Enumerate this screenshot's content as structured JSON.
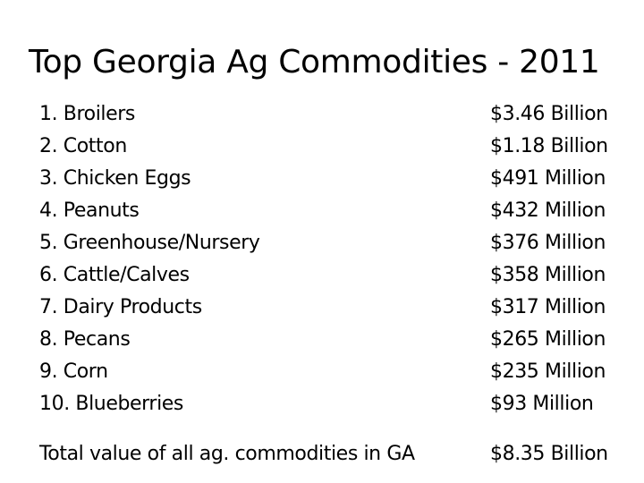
{
  "title": "Top Georgia Ag Commodities - 2011",
  "commodities": [
    {
      "name": "1. Broilers",
      "value": "$3.46 Billion"
    },
    {
      "name": "2. Cotton",
      "value": "$1.18 Billion"
    },
    {
      "name": "3. Chicken Eggs",
      "value": "$491 Million"
    },
    {
      "name": "4. Peanuts",
      "value": "$432 Million"
    },
    {
      "name": "5. Greenhouse/Nursery",
      "value": "$376 Million"
    },
    {
      "name": "6. Cattle/Calves",
      "value": "$358 Million"
    },
    {
      "name": "7. Dairy Products",
      "value": "$317 Million"
    },
    {
      "name": "8. Pecans",
      "value": "$265 Million"
    },
    {
      "name": "9. Corn",
      "value": "$235 Million"
    },
    {
      "name": "10. Blueberries",
      "value": "$93 Million"
    }
  ],
  "total": {
    "label": "Total value of all ag. commodities in GA",
    "value": "$8.35 Billion"
  }
}
